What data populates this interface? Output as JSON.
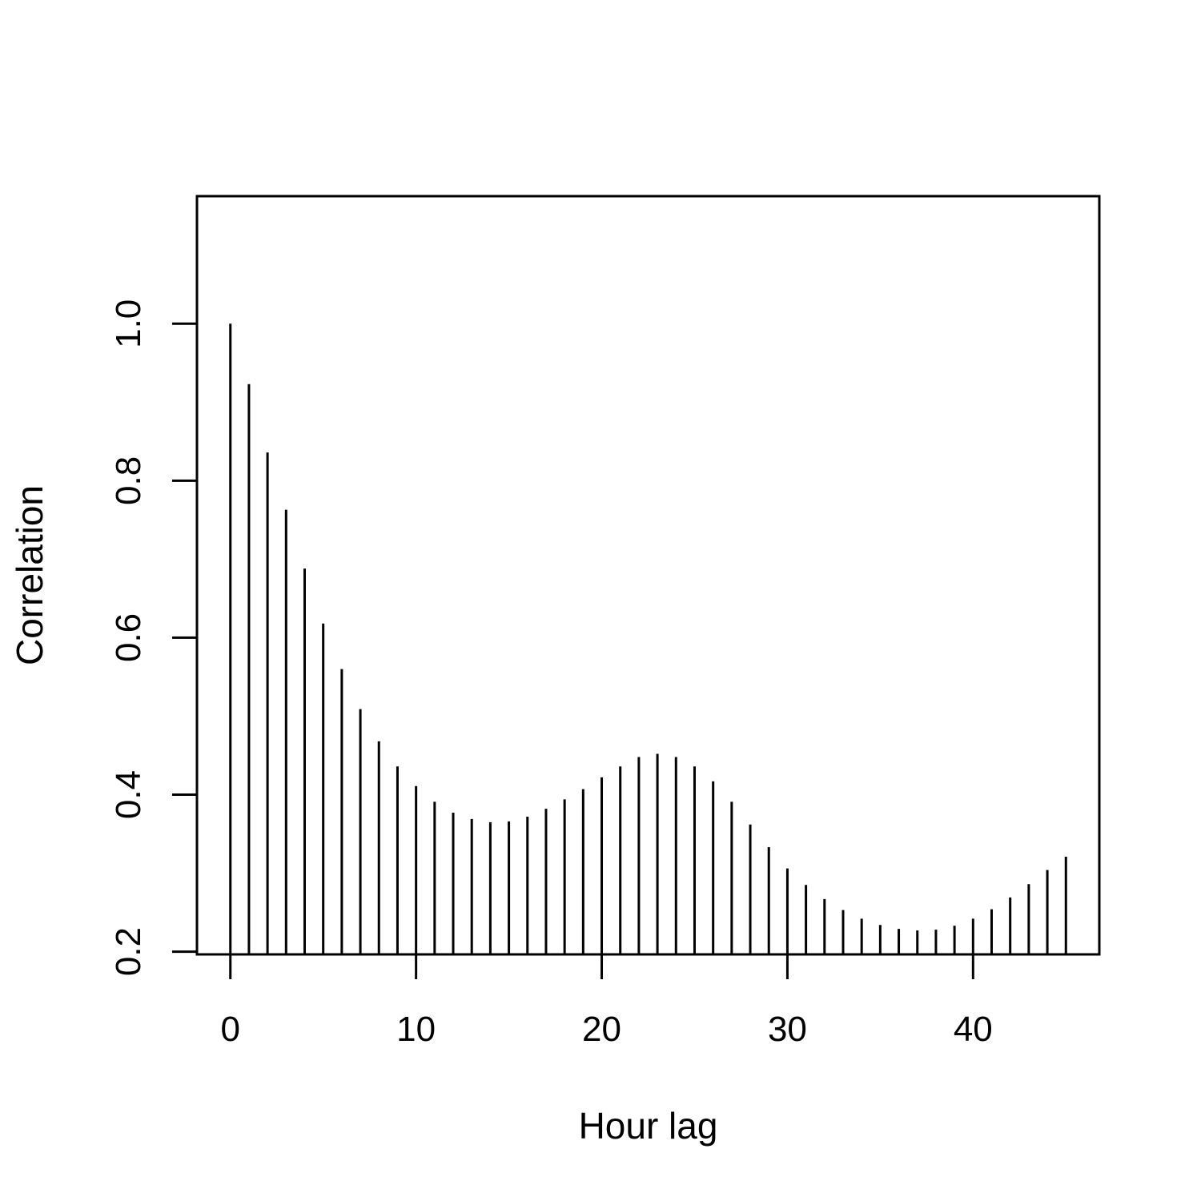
{
  "chart_data": {
    "type": "bar",
    "title": "",
    "xlabel": "Hour lag",
    "ylabel": "Correlation",
    "xlim": [
      -1.8,
      46.8
    ],
    "ylim": [
      0.1965,
      1.1625
    ],
    "x_ticks": [
      0,
      10,
      20,
      30,
      40
    ],
    "x_tick_labels": [
      "0",
      "10",
      "20",
      "30",
      "40"
    ],
    "y_ticks": [
      0.2,
      0.4,
      0.6,
      0.8,
      1.0
    ],
    "y_tick_labels": [
      "0.2",
      "0.4",
      "0.6",
      "0.8",
      "1.0"
    ],
    "grid": false,
    "color": "#000000",
    "x": [
      0,
      1,
      2,
      3,
      4,
      5,
      6,
      7,
      8,
      9,
      10,
      11,
      12,
      13,
      14,
      15,
      16,
      17,
      18,
      19,
      20,
      21,
      22,
      23,
      24,
      25,
      26,
      27,
      28,
      29,
      30,
      31,
      32,
      33,
      34,
      35,
      36,
      37,
      38,
      39,
      40,
      41,
      42,
      43,
      44,
      45
    ],
    "values": [
      1.0,
      0.923,
      0.836,
      0.763,
      0.688,
      0.618,
      0.56,
      0.509,
      0.468,
      0.436,
      0.411,
      0.391,
      0.377,
      0.369,
      0.365,
      0.366,
      0.372,
      0.382,
      0.394,
      0.407,
      0.422,
      0.436,
      0.448,
      0.452,
      0.448,
      0.436,
      0.417,
      0.391,
      0.362,
      0.333,
      0.306,
      0.285,
      0.267,
      0.253,
      0.242,
      0.234,
      0.229,
      0.227,
      0.228,
      0.233,
      0.242,
      0.254,
      0.269,
      0.286,
      0.304,
      0.321
    ]
  }
}
